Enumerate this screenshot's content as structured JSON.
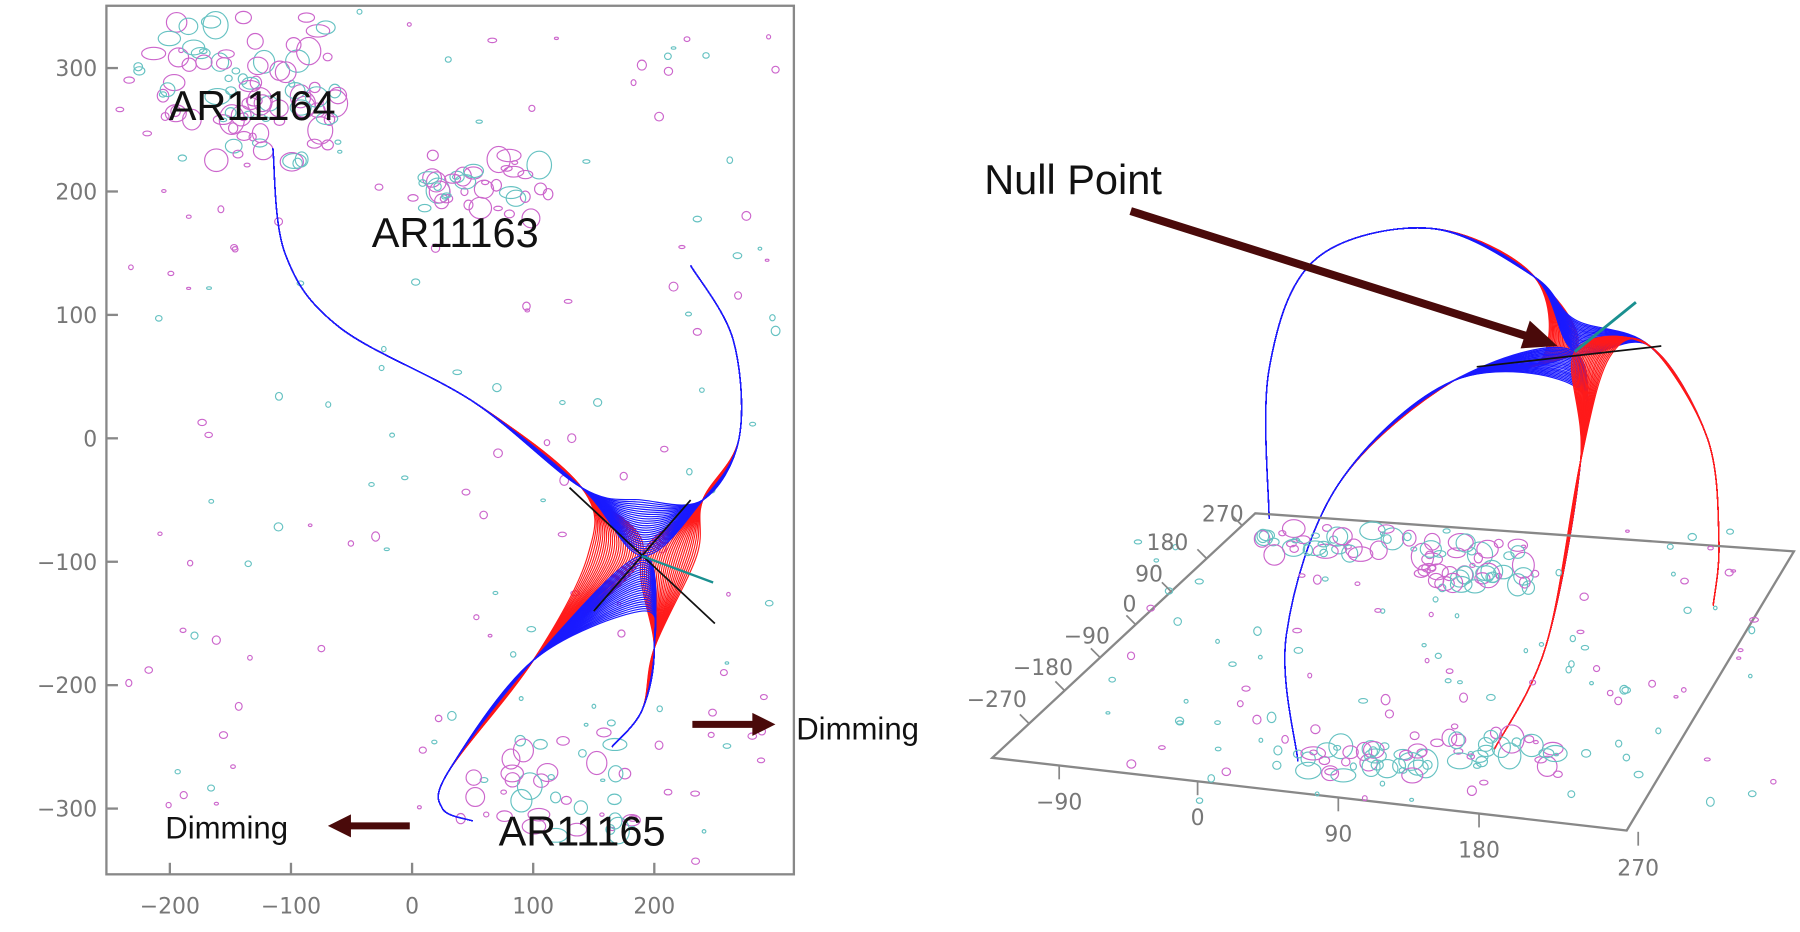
{
  "left_panel": {
    "x_ticks": [
      "−200",
      "−100",
      "0",
      "100",
      "200"
    ],
    "x_tick_values": [
      -200,
      -100,
      0,
      100,
      200
    ],
    "y_ticks": [
      "300",
      "200",
      "100",
      "0",
      "−100",
      "−200",
      "−300"
    ],
    "y_tick_values": [
      300,
      200,
      100,
      0,
      -100,
      -200,
      -300
    ],
    "labels": {
      "ar11164": "AR11164",
      "ar11163": "AR11163",
      "ar11165": "AR11165",
      "dimming_left": "Dimming",
      "dimming_right": "Dimming"
    }
  },
  "right_panel": {
    "null_point_label": "Null Point",
    "side_axis_ticks": [
      "270",
      "180",
      "90",
      "0",
      "−90",
      "−180",
      "−270"
    ],
    "bottom_axis_ticks": [
      "−90",
      "0",
      "90",
      "180",
      "270"
    ]
  },
  "colors": {
    "field_red": "#ff1a1a",
    "field_blue": "#1a1aff",
    "contour_positive": "#66c2c2",
    "contour_negative": "#cc66cc",
    "arrow": "#4a0a0a",
    "separator": "#1a9090",
    "axis": "#888888"
  }
}
